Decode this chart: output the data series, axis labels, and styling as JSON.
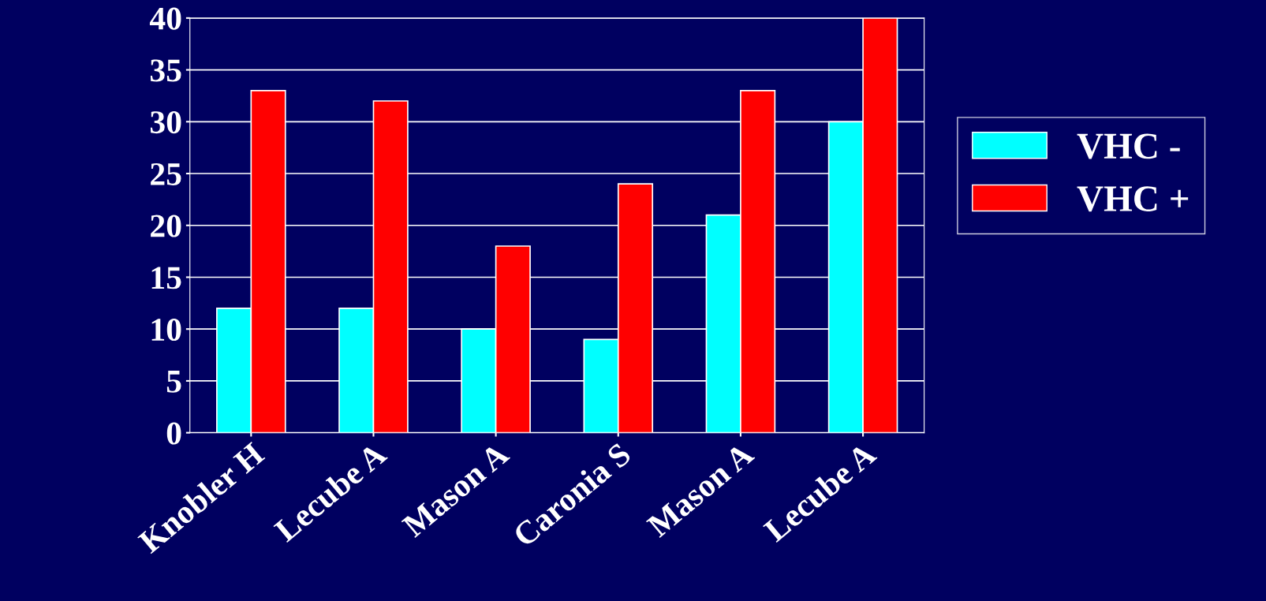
{
  "chart_data": {
    "type": "bar",
    "categories": [
      "Knobler H",
      "Lecube A",
      "Mason A",
      "Caronia S",
      "Mason A",
      "Lecube A"
    ],
    "series": [
      {
        "name": "VHC -",
        "color": "#00ffff",
        "values": [
          12,
          12,
          10,
          9,
          21,
          30
        ]
      },
      {
        "name": "VHC +",
        "color": "#ff0000",
        "values": [
          33,
          32,
          18,
          24,
          33,
          40
        ]
      }
    ],
    "ylim": [
      0,
      40
    ],
    "yticks": [
      0,
      5,
      10,
      15,
      20,
      25,
      30,
      35,
      40
    ],
    "grid": "y",
    "legend": "right"
  }
}
